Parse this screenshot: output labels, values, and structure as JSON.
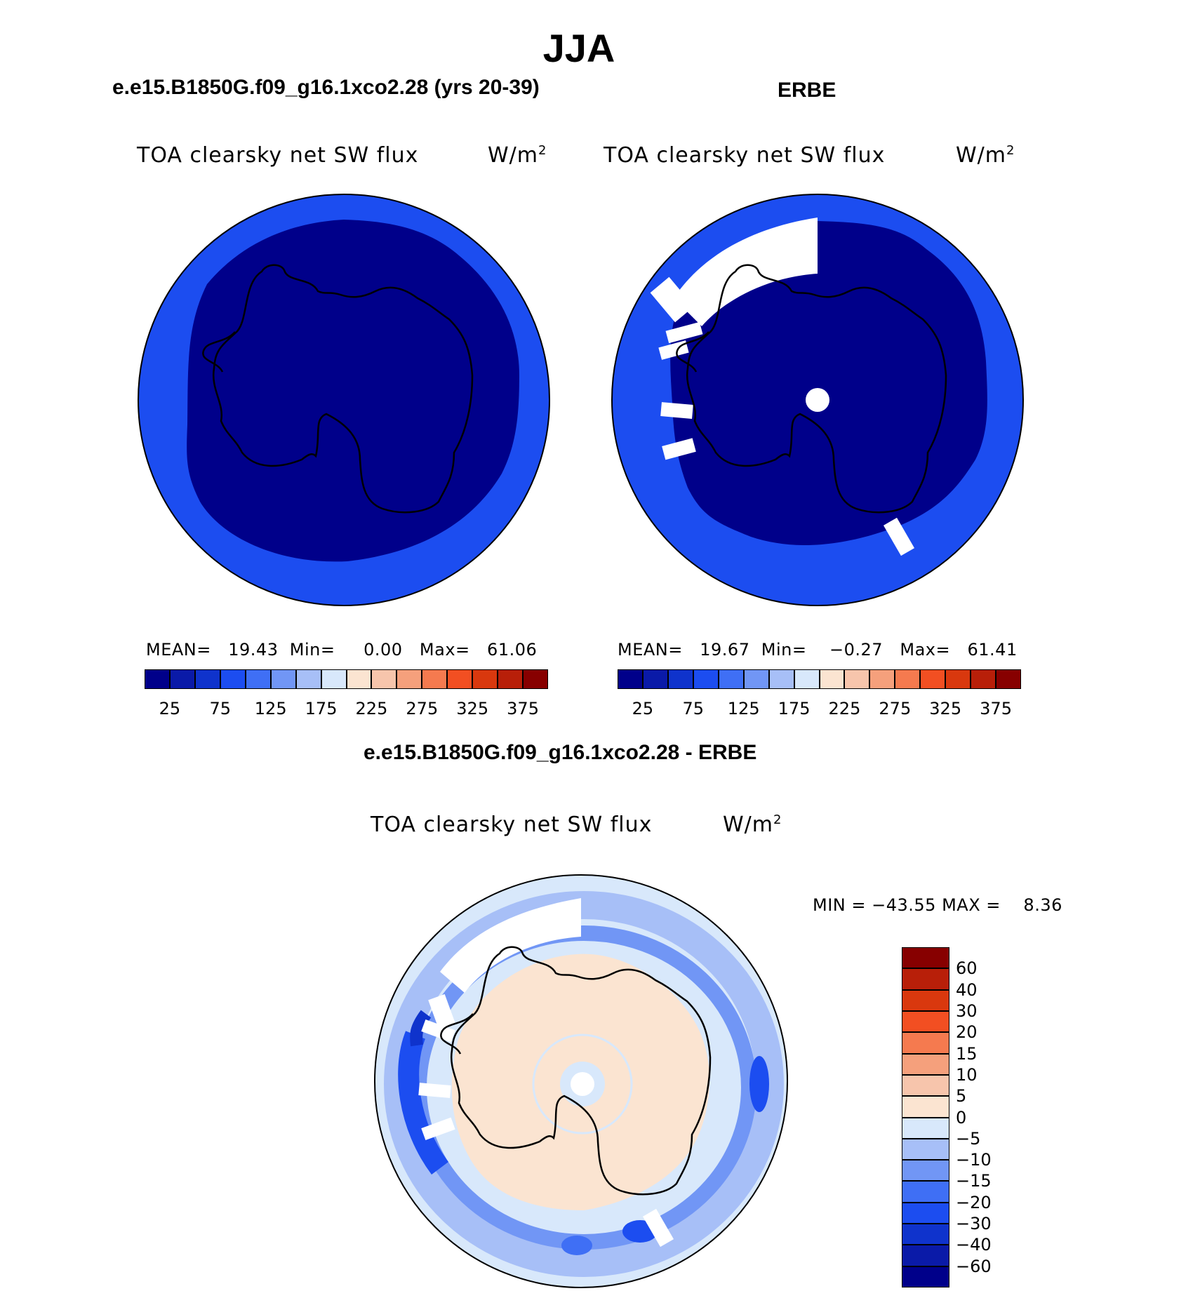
{
  "figure": {
    "season": "JJA"
  },
  "panels": {
    "model": {
      "title": "e.e15.B1850G.f09_g16.1xco2.28 (yrs 20-39)",
      "field": "TOA clearsky net SW flux",
      "units": "W/m",
      "units_sup": "2",
      "stats": {
        "mean_label": "MEAN=",
        "mean": "19.43",
        "min_label": "Min=",
        "min": "0.00",
        "max_label": "Max=",
        "max": "61.06"
      }
    },
    "obs": {
      "title": "ERBE",
      "field": "TOA clearsky net SW flux",
      "units": "W/m",
      "units_sup": "2",
      "stats": {
        "mean_label": "MEAN=",
        "mean": "19.67",
        "min_label": "Min=",
        "min": "−0.27",
        "max_label": "Max=",
        "max": "61.41"
      }
    },
    "diff": {
      "title": "e.e15.B1850G.f09_g16.1xco2.28 - ERBE",
      "field": "TOA clearsky net SW flux",
      "units": "W/m",
      "units_sup": "2",
      "stats": {
        "min_label": "MIN =",
        "min": "−43.55",
        "max_label": "MAX =",
        "max": "8.36"
      }
    }
  },
  "colorbars": {
    "absolute": {
      "colors": [
        "#00008a",
        "#0a1aa8",
        "#0f33cc",
        "#1c4df0",
        "#3f6ff5",
        "#7196f5",
        "#a7bff7",
        "#d8e8fb",
        "#fbe4d1",
        "#f7c5ac",
        "#f5a07c",
        "#f57a4f",
        "#f24f22",
        "#d9380e",
        "#b81f09",
        "#870000"
      ],
      "tick_labels": [
        "25",
        "75",
        "125",
        "175",
        "225",
        "275",
        "325",
        "375"
      ]
    },
    "difference": {
      "colors_top_to_bottom": [
        "#870000",
        "#b81f09",
        "#d9380e",
        "#f24f22",
        "#f57a4f",
        "#f5a07c",
        "#f7c5ac",
        "#fbe4d1",
        "#d8e8fb",
        "#a7bff7",
        "#7196f5",
        "#3f6ff5",
        "#1c4df0",
        "#0f33cc",
        "#0a1aa8",
        "#00008a"
      ],
      "tick_labels": [
        "60",
        "40",
        "30",
        "20",
        "15",
        "10",
        "5",
        "0",
        "−5",
        "−10",
        "−15",
        "−20",
        "−30",
        "−40",
        "−60"
      ]
    }
  },
  "map_colors": {
    "ocean_ring": "#1c4df0",
    "interior": "#00008a",
    "missing": "#ffffff",
    "diff_background": "#d8e8fb",
    "diff_land": "#fbe4d1",
    "diff_band_light": "#a7bff7",
    "diff_band_mid": "#7196f5",
    "diff_band_strong": "#1c4df0",
    "coast": "#000000"
  }
}
